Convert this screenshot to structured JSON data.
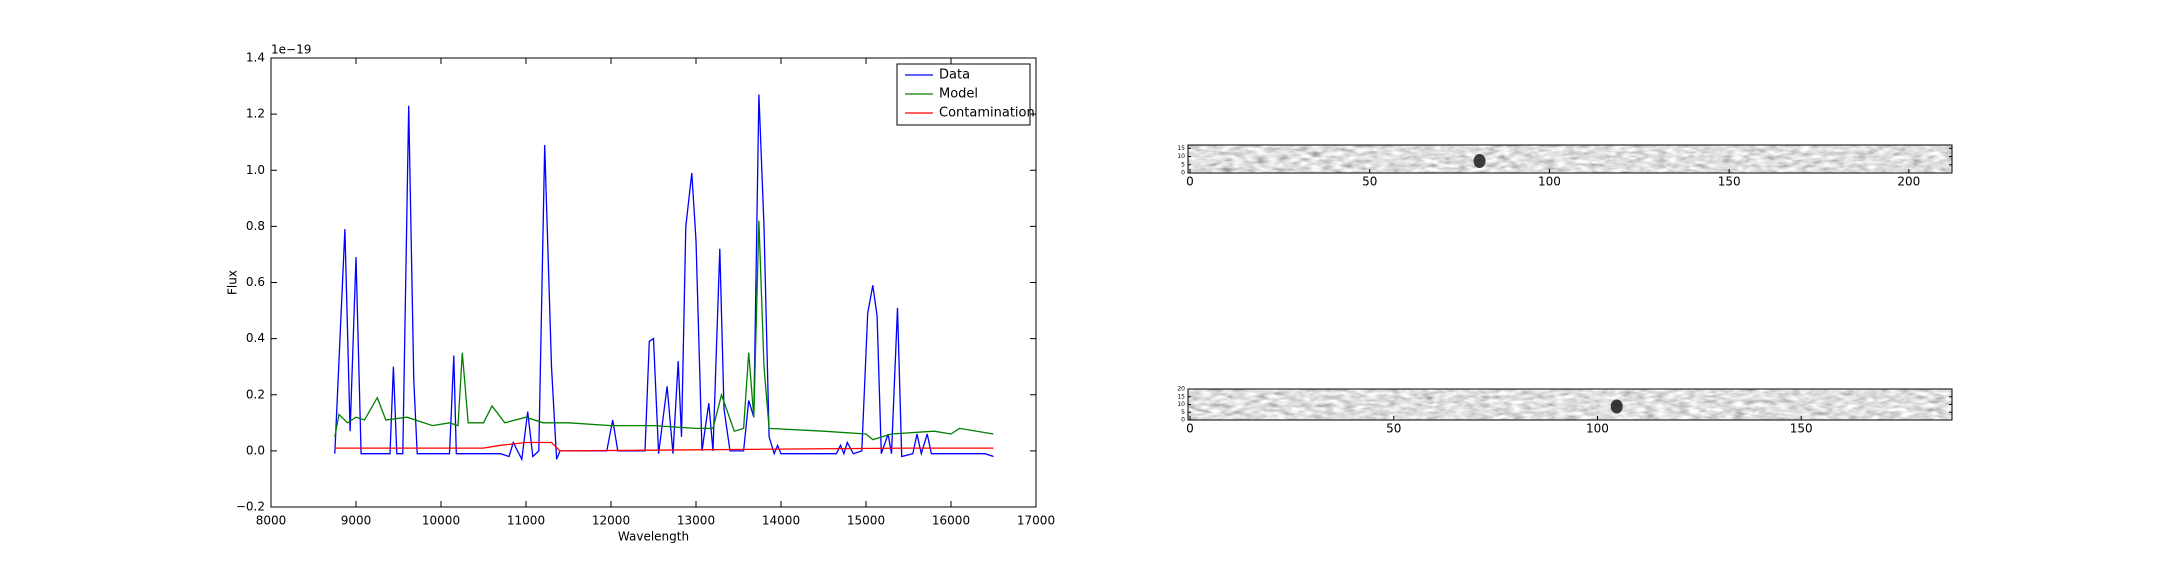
{
  "chart_data": [
    {
      "type": "line",
      "xlabel": "Wavelength",
      "ylabel": "Flux",
      "offset_text": "1e−19",
      "xlim": [
        8000,
        17000
      ],
      "xticks": [
        8000,
        9000,
        10000,
        11000,
        12000,
        13000,
        14000,
        15000,
        16000,
        17000
      ],
      "ylim": [
        -0.2,
        1.4
      ],
      "yticks": [
        {
          "value": -0.2,
          "label": "−0.2"
        },
        {
          "value": 0,
          "label": "0.0"
        },
        {
          "value": 0.2,
          "label": "0.2"
        },
        {
          "value": 0.4,
          "label": "0.4"
        },
        {
          "value": 0.6,
          "label": "0.6"
        },
        {
          "value": 0.8,
          "label": "0.8"
        },
        {
          "value": 1,
          "label": "1.0"
        },
        {
          "value": 1.2,
          "label": "1.2"
        },
        {
          "value": 1.4,
          "label": "1.4"
        }
      ],
      "legend": "upper right",
      "series": [
        {
          "name": "Data",
          "color": "#0000ff",
          "x": [
            8750,
            8870,
            8930,
            9000,
            9060,
            9400,
            9440,
            9480,
            9550,
            9620,
            9680,
            9720,
            10100,
            10150,
            10180,
            10700,
            10800,
            10850,
            10950,
            11020,
            11080,
            11150,
            11220,
            11300,
            11360,
            11400,
            11950,
            12020,
            12080,
            12400,
            12450,
            12500,
            12560,
            12660,
            12730,
            12790,
            12830,
            12880,
            12950,
            13000,
            13070,
            13150,
            13200,
            13280,
            13330,
            13400,
            13560,
            13620,
            13680,
            13740,
            13800,
            13860,
            13920,
            13960,
            14000,
            14650,
            14700,
            14740,
            14780,
            14850,
            14950,
            15020,
            15080,
            15130,
            15180,
            15260,
            15300,
            15370,
            15420,
            15550,
            15600,
            15650,
            15720,
            15770,
            16400,
            16500
          ],
          "values": [
            -0.01,
            0.79,
            0.07,
            0.69,
            -0.01,
            -0.01,
            0.3,
            -0.01,
            -0.01,
            1.23,
            0.25,
            -0.01,
            -0.01,
            0.34,
            -0.01,
            -0.01,
            -0.02,
            0.03,
            -0.03,
            0.14,
            -0.02,
            0,
            1.09,
            0.3,
            -0.03,
            0,
            0,
            0.11,
            0,
            0,
            0.39,
            0.4,
            -0.01,
            0.23,
            -0.01,
            0.32,
            0.05,
            0.8,
            0.99,
            0.75,
            0,
            0.17,
            0,
            0.72,
            0.15,
            0,
            0,
            0.18,
            0.12,
            1.27,
            0.8,
            0.05,
            -0.01,
            0.02,
            -0.01,
            -0.01,
            0.02,
            -0.01,
            0.03,
            -0.01,
            0,
            0.49,
            0.59,
            0.48,
            -0.01,
            0.06,
            -0.01,
            0.51,
            -0.02,
            -0.01,
            0.06,
            -0.01,
            0.06,
            -0.01,
            -0.01,
            -0.02
          ]
        },
        {
          "name": "Model",
          "color": "#008000",
          "x": [
            8750,
            8800,
            8900,
            9000,
            9100,
            9250,
            9350,
            9600,
            9900,
            10100,
            10200,
            10250,
            10320,
            10500,
            10600,
            10750,
            11000,
            11200,
            11500,
            12000,
            12500,
            13000,
            13200,
            13300,
            13450,
            13560,
            13620,
            13680,
            13740,
            13800,
            13860,
            14500,
            15000,
            15080,
            15300,
            15800,
            16000,
            16100,
            16500
          ],
          "values": [
            0.05,
            0.13,
            0.1,
            0.12,
            0.11,
            0.19,
            0.11,
            0.12,
            0.09,
            0.1,
            0.09,
            0.35,
            0.1,
            0.1,
            0.16,
            0.1,
            0.12,
            0.1,
            0.1,
            0.09,
            0.09,
            0.08,
            0.08,
            0.2,
            0.07,
            0.08,
            0.35,
            0.12,
            0.82,
            0.3,
            0.08,
            0.07,
            0.06,
            0.04,
            0.06,
            0.07,
            0.06,
            0.08,
            0.06
          ]
        },
        {
          "name": "Contamination",
          "color": "#ff0000",
          "x": [
            8750,
            10500,
            10700,
            11000,
            11300,
            11400,
            15500,
            16500
          ],
          "values": [
            0.01,
            0.01,
            0.02,
            0.03,
            0.03,
            0,
            0.01,
            0.01
          ]
        }
      ]
    },
    {
      "type": "image",
      "xlim": [
        0,
        212
      ],
      "xticks": [
        0,
        50,
        100,
        150,
        200
      ],
      "ylim": [
        0,
        17
      ],
      "yticks": [
        0,
        5,
        10,
        15
      ]
    },
    {
      "type": "image",
      "xlim": [
        0,
        187
      ],
      "xticks": [
        0,
        50,
        100,
        150
      ],
      "ylim": [
        0,
        20
      ],
      "yticks": [
        0,
        5,
        10,
        15,
        20
      ]
    }
  ]
}
